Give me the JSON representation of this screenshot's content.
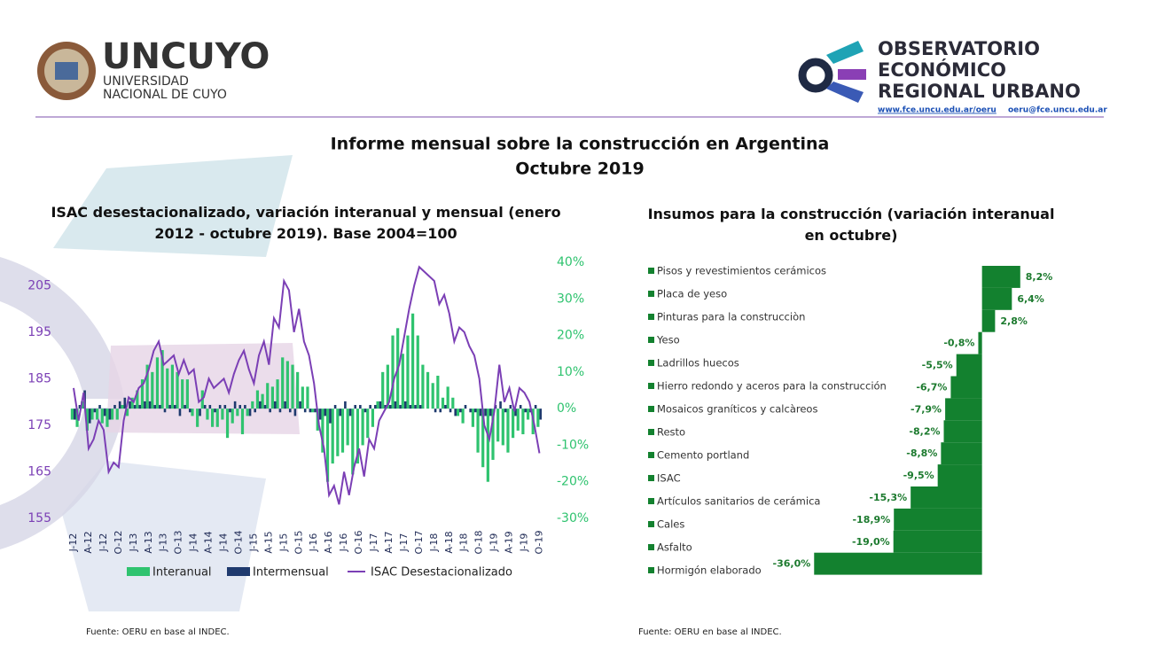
{
  "header": {
    "logo_left": {
      "name": "UNCUYO",
      "line1": "UNIVERSIDAD",
      "line2": "NACIONAL DE CUYO"
    },
    "logo_right": {
      "line1": "OBSERVATORIO",
      "line2": "ECONÓMICO",
      "line3": "REGIONAL URBANO",
      "website": "www.fce.uncu.edu.ar/oeru",
      "email": "oeru@fce.uncu.edu.ar"
    }
  },
  "title": "Informe mensual sobre la construcción en Argentina",
  "subtitle": "Octubre 2019",
  "chart_data": [
    {
      "type": "combo",
      "title": "ISAC desestacionalizado, variación interanual y mensual (enero 2012 - octubre 2019). Base 2004=100",
      "categories": [
        "J-12",
        null,
        null,
        "A-12",
        null,
        null,
        "J-12",
        null,
        null,
        "O-12",
        null,
        null,
        "J-13",
        null,
        null,
        "A-13",
        null,
        null,
        "J-13",
        null,
        null,
        "O-13",
        null,
        null,
        "J-14",
        null,
        null,
        "A-14",
        null,
        null,
        "J-14",
        null,
        null,
        "O-14",
        null,
        null,
        "J-15",
        null,
        null,
        "A-15",
        null,
        null,
        "J-15",
        null,
        null,
        "O-15",
        null,
        null,
        "J-16",
        null,
        null,
        "A-16",
        null,
        null,
        "J-16",
        null,
        null,
        "O-16",
        null,
        null,
        "J-17",
        null,
        null,
        "A-17",
        null,
        null,
        "J-17",
        null,
        null,
        "O-17",
        null,
        null,
        "J-18",
        null,
        null,
        "A-18",
        null,
        null,
        "J-18",
        null,
        null,
        "O-18",
        null,
        null,
        "J-19",
        null,
        null,
        "A-19",
        null,
        null,
        "J-19",
        null,
        null,
        "O-19"
      ],
      "ylim": [
        155,
        210
      ],
      "yticks": [
        155,
        165,
        175,
        185,
        195,
        205
      ],
      "y2lim": [
        -30,
        40
      ],
      "y2ticks": [
        {
          "value": -30,
          "label": "-30%"
        },
        {
          "value": -20,
          "label": "-20%"
        },
        {
          "value": -10,
          "label": "-10%"
        },
        {
          "value": 0,
          "label": "0%"
        },
        {
          "value": 10,
          "label": "10%"
        },
        {
          "value": 20,
          "label": "20%"
        },
        {
          "value": 30,
          "label": "30%"
        },
        {
          "value": 40,
          "label": "40%"
        }
      ],
      "legend": "bottom",
      "series": [
        {
          "name": "Interanual",
          "kind": "bar",
          "axis": "y2",
          "color": "#2fc36f",
          "values": [
            -3,
            -5,
            2,
            -6,
            -3,
            -3,
            -4,
            -5,
            -3,
            -3,
            1,
            -2,
            3,
            5,
            8,
            12,
            10,
            14,
            16,
            11,
            12,
            10,
            8,
            8,
            -2,
            -5,
            5,
            -3,
            -5,
            -5,
            -3,
            -8,
            -4,
            -2,
            -7,
            -2,
            2,
            5,
            4,
            7,
            6,
            8,
            14,
            13,
            12,
            10,
            6,
            6,
            -1,
            -6,
            -12,
            -20,
            -15,
            -13,
            -12,
            -10,
            -18,
            -15,
            -10,
            -8,
            -5,
            2,
            10,
            12,
            20,
            22,
            15,
            20,
            26,
            20,
            12,
            10,
            7,
            9,
            3,
            6,
            3,
            -2,
            -4,
            0,
            -5,
            -12,
            -16,
            -20,
            -14,
            -9,
            -10,
            -12,
            -8,
            -6,
            -7,
            -3,
            -7,
            -5
          ]
        },
        {
          "name": "Intermensual",
          "kind": "bar",
          "axis": "y2",
          "color": "#1f3a6e",
          "values": [
            -3,
            1,
            5,
            -4,
            -1,
            1,
            -2,
            -3,
            1,
            2,
            3,
            2,
            1,
            1,
            2,
            2,
            1,
            1,
            -1,
            1,
            1,
            -2,
            1,
            -1,
            0,
            -2,
            1,
            1,
            -1,
            1,
            1,
            -1,
            2,
            1,
            1,
            -2,
            -1,
            2,
            1,
            -1,
            2,
            -1,
            2,
            -1,
            -2,
            2,
            -1,
            -1,
            -1,
            -3,
            -2,
            -4,
            1,
            -2,
            2,
            -2,
            1,
            1,
            -1,
            1,
            1,
            2,
            1,
            1,
            2,
            1,
            2,
            1,
            1,
            1,
            0,
            0,
            -1,
            -1,
            1,
            -1,
            -2,
            -1,
            1,
            -1,
            -1,
            -2,
            -2,
            -2,
            1,
            2,
            -1,
            1,
            -2,
            1,
            -1,
            -1,
            1,
            -3
          ]
        },
        {
          "name": "ISAC Desestacionalizado",
          "kind": "line",
          "color": "#7b3fb5",
          "values": [
            183,
            176,
            182,
            170,
            172,
            176,
            174,
            165,
            167,
            166,
            176,
            181,
            180,
            183,
            184,
            187,
            191,
            193,
            188,
            189,
            190,
            186,
            189,
            186,
            187,
            180,
            181,
            185,
            183,
            184,
            185,
            182,
            186,
            189,
            191,
            187,
            184,
            190,
            193,
            188,
            198,
            196,
            206,
            204,
            195,
            200,
            193,
            190,
            184,
            175,
            170,
            160,
            162,
            158,
            165,
            160,
            166,
            170,
            164,
            172,
            170,
            176,
            178,
            180,
            185,
            188,
            194,
            200,
            205,
            209,
            208,
            207,
            206,
            201,
            203,
            199,
            193,
            196,
            195,
            192,
            190,
            185,
            175,
            172,
            178,
            188,
            180,
            183,
            178,
            183,
            182,
            180,
            175,
            169
          ]
        }
      ]
    },
    {
      "type": "hbar",
      "title": "Insumos para la construcción (variación interanual en octubre)",
      "categories": [
        "Pisos y revestimientos cerámicos",
        "Placa de yeso",
        "Pinturas para la construcciòn",
        "Yeso",
        "Ladrillos huecos",
        "Hierro redondo y aceros para la construcción",
        "Mosaicos graníticos y calcàreos",
        "Resto",
        "Cemento portland",
        "ISAC",
        "Artículos sanitarios de cerámica",
        "Cales",
        "Asfalto",
        "Hormigón elaborado"
      ],
      "values": [
        8.2,
        6.4,
        2.8,
        -0.8,
        -5.5,
        -6.7,
        -7.9,
        -8.2,
        -8.8,
        -9.5,
        -15.3,
        -18.9,
        -19.0,
        -36.0
      ],
      "value_labels": [
        "8,2%",
        "6,4%",
        "2,8%",
        "-0,8%",
        "-5,5%",
        "-6,7%",
        "-7,9%",
        "-8,2%",
        "-8,8%",
        "-9,5%",
        "-15,3%",
        "-18,9%",
        "-19,0%",
        "-36,0%"
      ],
      "xlim": [
        -37,
        9
      ],
      "color": "#13812f"
    }
  ],
  "footnotes": [
    "Fuente: OERU en base al INDEC.",
    "Fuente: OERU en base al INDEC."
  ]
}
